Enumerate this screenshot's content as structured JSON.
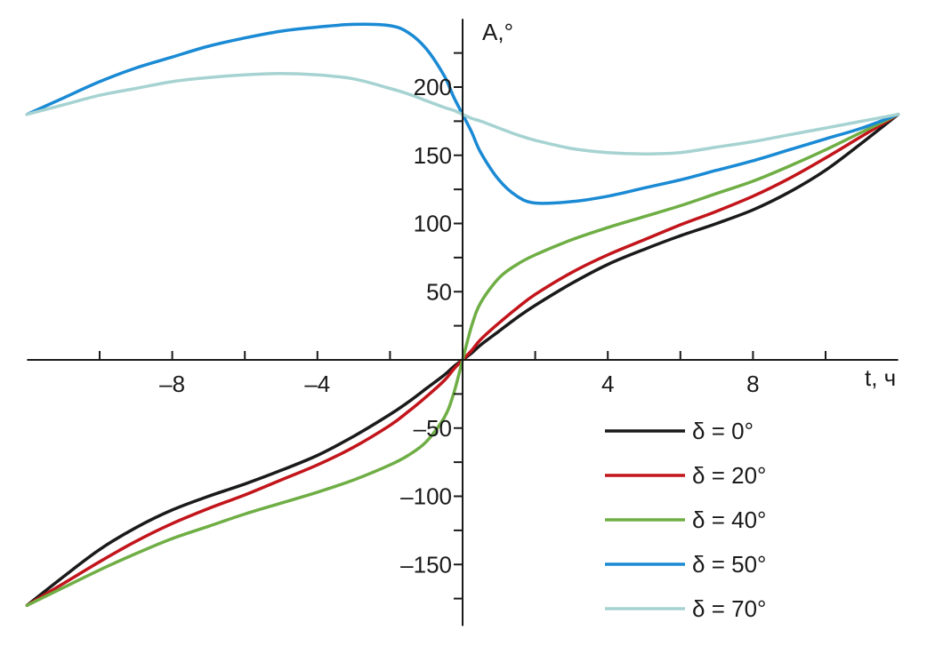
{
  "chart_data": {
    "type": "line",
    "title": "",
    "xlabel": "t, ч",
    "ylabel": "A,°",
    "xlim": [
      -12,
      12
    ],
    "ylim": [
      -195,
      250
    ],
    "grid": false,
    "legend_position": "bottom-right",
    "x_ticks_labeled": [
      -8,
      -4,
      4,
      8
    ],
    "x_tick_labels": [
      "–8",
      "–4",
      "4",
      "8"
    ],
    "x_ticks_minor": [
      -10,
      -6,
      -2,
      2,
      6,
      10
    ],
    "y_ticks_labeled": [
      200,
      150,
      100,
      50,
      -50,
      -100,
      -150
    ],
    "y_tick_labels": [
      "200",
      "150",
      "100",
      "50",
      "–50",
      "–100",
      "–150"
    ],
    "y_ticks_minor": [
      225,
      175,
      125,
      75,
      25,
      -25,
      -75,
      -125,
      -175
    ],
    "x": [
      -12,
      -11,
      -10,
      -9,
      -8,
      -7,
      -6,
      -5,
      -4,
      -3,
      -2,
      -1.5,
      -1,
      -0.5,
      -0.25,
      0,
      0.25,
      0.5,
      1,
      1.5,
      2,
      3,
      4,
      5,
      6,
      7,
      8,
      9,
      10,
      11,
      12
    ],
    "series": [
      {
        "name": "δ = 0°",
        "color": "#1a1a1a",
        "values": [
          -180,
          -159,
          -139,
          -123,
          -110,
          -100,
          -91,
          -81,
          -70,
          -56,
          -40,
          -31,
          -21,
          -11,
          -5,
          0,
          5,
          11,
          21,
          31,
          40,
          56,
          70,
          81,
          91,
          100,
          110,
          123,
          139,
          159,
          180
        ]
      },
      {
        "name": "δ = 20°",
        "color": "#c2151b",
        "values": [
          -180,
          -164,
          -148,
          -133,
          -120,
          -109,
          -99,
          -88,
          -77,
          -64,
          -48,
          -38,
          -27,
          -15,
          -7,
          0,
          7,
          15,
          27,
          38,
          48,
          64,
          77,
          88,
          99,
          109,
          120,
          133,
          148,
          164,
          180
        ]
      },
      {
        "name": "δ = 40°",
        "color": "#6fae45",
        "values": [
          -180,
          -167,
          -154,
          -142,
          -131,
          -122,
          -113,
          -105,
          -97,
          -88,
          -77,
          -70,
          -60,
          -42,
          -25,
          0,
          25,
          42,
          60,
          70,
          77,
          88,
          97,
          105,
          113,
          122,
          131,
          142,
          154,
          167,
          180
        ]
      },
      {
        "name": "δ = 50°",
        "color": "#1a8ad4",
        "values": [
          180,
          192,
          204,
          214,
          222,
          230,
          236,
          241,
          244,
          246,
          245,
          240,
          228,
          208,
          193,
          180,
          167,
          152,
          132,
          120,
          115,
          116,
          120,
          126,
          132,
          139,
          146,
          154,
          162,
          170,
          180
        ]
      },
      {
        "name": "δ = 70°",
        "color": "#a6d3d1",
        "values": [
          180,
          187,
          194,
          199,
          204,
          207,
          209,
          210,
          209,
          206,
          199,
          195,
          190,
          185,
          183,
          180,
          177,
          175,
          170,
          165,
          161,
          155,
          152,
          151,
          152,
          156,
          160,
          165,
          170,
          175,
          180
        ]
      }
    ]
  }
}
